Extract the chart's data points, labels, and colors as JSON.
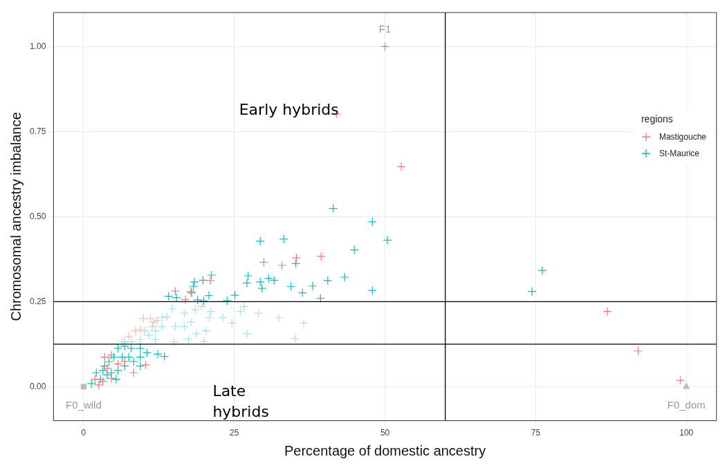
{
  "chart_data": {
    "type": "scatter",
    "xlabel": "Percentage of domestic ancestry",
    "ylabel": "Chromosomal ancestry imbalance",
    "legend_title": "regions",
    "legend": "top right",
    "grid": true,
    "marker": "cross",
    "xlim": [
      -5,
      105
    ],
    "ylim": [
      -0.1,
      1.1
    ],
    "xticks": [
      0,
      25,
      50,
      75,
      100
    ],
    "yticks": [
      {
        "value": 0,
        "label": "0.00"
      },
      {
        "value": 0.25,
        "label": "0.25"
      },
      {
        "value": 0.5,
        "label": "0.50"
      },
      {
        "value": 0.75,
        "label": "0.75"
      },
      {
        "value": 1,
        "label": "1.00"
      }
    ],
    "ref_lines": [
      {
        "axis": "x",
        "value": 60,
        "color": "#000000"
      },
      {
        "axis": "y",
        "value": 0.25,
        "color": "#000000"
      },
      {
        "axis": "y",
        "value": 0.125,
        "color": "#000000"
      }
    ],
    "annotations": [
      "Early hybrids",
      "Late\nhybrids",
      {
        "text": "F1",
        "x": 50,
        "y": 1
      },
      {
        "text": "F0_wild",
        "x": 0,
        "y": 0
      },
      {
        "text": "F0_dom",
        "x": 100,
        "y": 0
      }
    ],
    "series": [
      {
        "color": "#a3e4e6",
        "x": [
          26.6,
          26.0,
          29.0,
          32.4,
          36.5,
          23.1,
          24.6,
          27.1,
          35.1,
          20.9,
          20.3,
          20.0,
          18.7,
          17.4,
          15.0,
          21.1,
          18.5,
          16.7,
          17.8,
          14.7,
          13.8,
          15.2,
          16.7,
          13.0,
          11.9,
          10.8,
          10.1,
          11.9,
          9.4,
          7.9,
          6.8,
          13.0,
          11.6
        ],
        "values": [
          0.236,
          0.221,
          0.216,
          0.202,
          0.187,
          0.204,
          0.187,
          0.156,
          0.142,
          0.203,
          0.164,
          0.133,
          0.156,
          0.14,
          0.132,
          0.221,
          0.226,
          0.216,
          0.19,
          0.229,
          0.206,
          0.177,
          0.177,
          0.177,
          0.164,
          0.151,
          0.164,
          0.138,
          0.138,
          0.132,
          0.132,
          0.203,
          0.19
        ]
      },
      {
        "color": "#fbbab5",
        "x": [
          9.9,
          11.1,
          12.2,
          9.4,
          8.6,
          7.5,
          19.6,
          6.4,
          11.4
        ],
        "values": [
          0.201,
          0.2,
          0.194,
          0.168,
          0.164,
          0.148,
          0.236,
          0.132,
          0.177
        ]
      },
      {
        "name": "Mastigouche",
        "color": "#f8766d",
        "x": [
          42.0,
          52.7,
          39.4,
          35.3,
          32.9,
          29.9,
          21.0,
          17.8,
          15.2,
          16.9,
          2.5,
          4.6,
          3.5,
          4.6,
          5.7,
          8.3,
          10.3,
          3.2,
          1.9,
          3.9,
          6.8,
          86.9,
          92.0,
          99.0
        ],
        "values": [
          0.802,
          0.647,
          0.383,
          0.379,
          0.357,
          0.366,
          0.312,
          0.28,
          0.281,
          0.256,
          0.005,
          0.025,
          0.087,
          0.093,
          0.067,
          0.041,
          0.064,
          0.016,
          0.022,
          0.054,
          0.074,
          0.221,
          0.105,
          0.019
        ]
      },
      {
        "name": "St-Maurice",
        "color": "#00bfc4",
        "x": [
          41.4,
          47.9,
          50.4,
          44.9,
          43.3,
          40.5,
          47.9,
          39.3,
          29.3,
          33.2,
          35.2,
          38.0,
          34.4,
          36.3,
          31.6,
          30.7,
          27.3,
          27.1,
          29.3,
          29.6,
          25.1,
          23.8,
          21.2,
          19.8,
          18.4,
          18.2,
          17.9,
          14.1,
          15.4,
          18.9,
          20.8,
          19.9,
          13.4,
          12.3,
          10.5,
          9.4,
          8.3,
          6.8,
          5.7,
          5.4,
          3.9,
          2.8,
          1.3,
          5.7,
          6.8,
          7.9,
          9.4,
          5.0,
          4.2,
          7.5,
          6.4,
          3.5,
          2.1,
          9.4,
          4.6,
          3.2,
          76.1,
          74.4
        ],
        "values": [
          0.524,
          0.485,
          0.431,
          0.402,
          0.322,
          0.312,
          0.283,
          0.26,
          0.428,
          0.434,
          0.362,
          0.296,
          0.295,
          0.276,
          0.313,
          0.318,
          0.326,
          0.305,
          0.308,
          0.289,
          0.269,
          0.253,
          0.328,
          0.313,
          0.308,
          0.295,
          0.276,
          0.266,
          0.262,
          0.255,
          0.268,
          0.252,
          0.089,
          0.096,
          0.1,
          0.087,
          0.074,
          0.061,
          0.048,
          0.022,
          0.035,
          0.022,
          0.009,
          0.113,
          0.119,
          0.113,
          0.113,
          0.087,
          0.074,
          0.087,
          0.087,
          0.061,
          0.041,
          0.061,
          0.041,
          0.048,
          0.342,
          0.28
        ]
      },
      {
        "color": "#999999",
        "marker": "cross",
        "x": [
          50
        ],
        "values": [
          1
        ]
      },
      {
        "color": "#bdbdbd",
        "marker": "square",
        "x": [
          0
        ],
        "values": [
          0
        ]
      },
      {
        "color": "#bdbdbd",
        "marker": "triangle",
        "x": [
          100
        ],
        "values": [
          0
        ]
      }
    ]
  }
}
